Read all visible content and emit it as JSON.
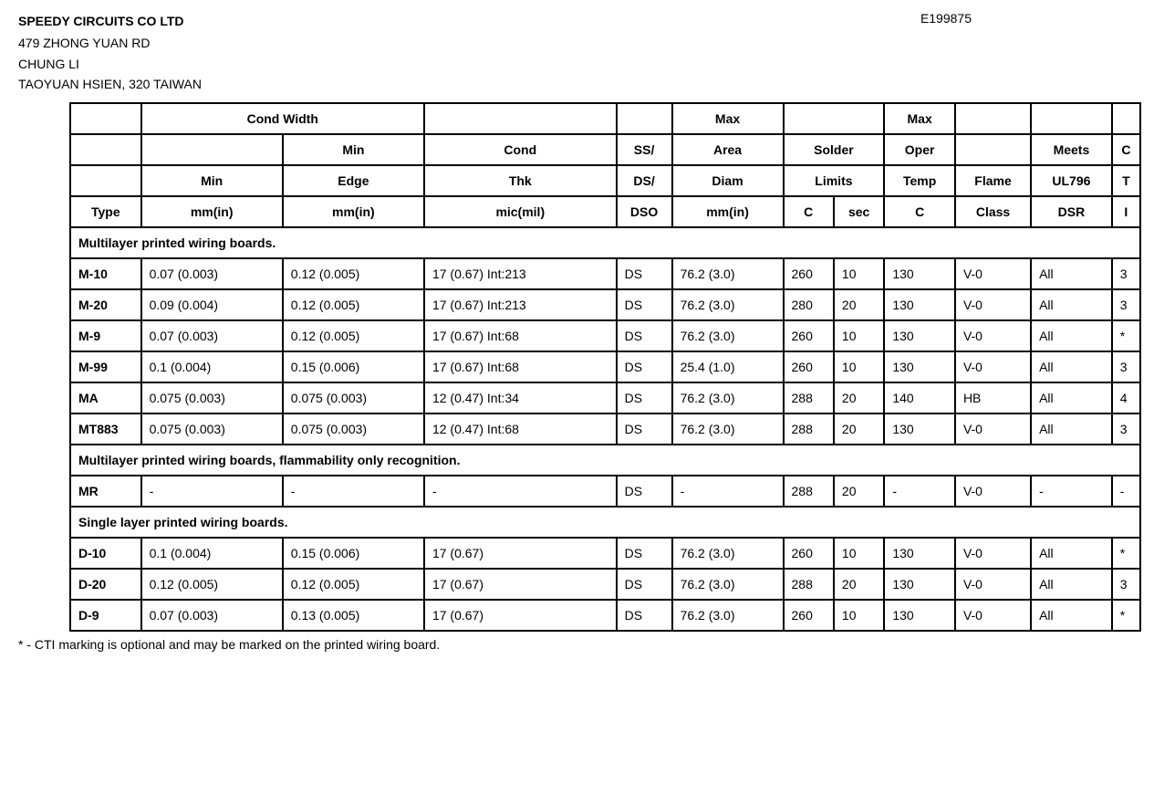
{
  "company": {
    "name": "SPEEDY CIRCUITS CO LTD",
    "address1": "479 ZHONG YUAN RD",
    "address2": "CHUNG LI",
    "address3": "TAOYUAN HSIEN, 320 TAIWAN"
  },
  "doc_number": "E199875",
  "header": {
    "r1_cond_width": "Cond Width",
    "r1_max_area": "Max",
    "r1_max_oper": "Max",
    "r2_min": "Min",
    "r2_cond": "Cond",
    "r2_ss": "SS/",
    "r2_area": "Area",
    "r2_solder": "Solder",
    "r2_oper": "Oper",
    "r2_meets": "Meets",
    "r2_c": "C",
    "r3_min": "Min",
    "r3_edge": "Edge",
    "r3_thk": "Thk",
    "r3_ds": "DS/",
    "r3_diam": "Diam",
    "r3_limits": "Limits",
    "r3_temp": "Temp",
    "r3_flame": "Flame",
    "r3_ul796": "UL796",
    "r3_t": "T",
    "r4_type": "Type",
    "r4_mmin1": "mm(in)",
    "r4_mmin2": "mm(in)",
    "r4_micmil": "mic(mil)",
    "r4_dso": "DSO",
    "r4_mmin3": "mm(in)",
    "r4_c": "C",
    "r4_sec": "sec",
    "r4_c2": "C",
    "r4_class": "Class",
    "r4_dsr": "DSR",
    "r4_i": "I"
  },
  "sections": {
    "multilayer": "Multilayer printed wiring boards.",
    "multilayer_flam": "Multilayer printed wiring boards, flammability only recognition.",
    "single_layer": "Single layer printed wiring boards."
  },
  "rows": {
    "m10": {
      "type": "M-10",
      "min": "0.07 (0.003)",
      "edge": "0.12 (0.005)",
      "cond": "17 (0.67) Int:213",
      "ss": "DS",
      "area": "76.2 (3.0)",
      "c": "260",
      "sec": "10",
      "temp": "130",
      "flame": "V-0",
      "meets": "All",
      "cti": "3"
    },
    "m20": {
      "type": "M-20",
      "min": "0.09 (0.004)",
      "edge": "0.12 (0.005)",
      "cond": "17 (0.67) Int:213",
      "ss": "DS",
      "area": "76.2 (3.0)",
      "c": "280",
      "sec": "20",
      "temp": "130",
      "flame": "V-0",
      "meets": "All",
      "cti": "3"
    },
    "m9": {
      "type": "M-9",
      "min": "0.07 (0.003)",
      "edge": "0.12 (0.005)",
      "cond": "17 (0.67) Int:68",
      "ss": "DS",
      "area": "76.2 (3.0)",
      "c": "260",
      "sec": "10",
      "temp": "130",
      "flame": "V-0",
      "meets": "All",
      "cti": "*"
    },
    "m99": {
      "type": "M-99",
      "min": "0.1 (0.004)",
      "edge": "0.15 (0.006)",
      "cond": "17 (0.67) Int:68",
      "ss": "DS",
      "area": "25.4 (1.0)",
      "c": "260",
      "sec": "10",
      "temp": "130",
      "flame": "V-0",
      "meets": "All",
      "cti": "3"
    },
    "ma": {
      "type": "MA",
      "min": "0.075 (0.003)",
      "edge": "0.075 (0.003)",
      "cond": "12 (0.47) Int:34",
      "ss": "DS",
      "area": "76.2 (3.0)",
      "c": "288",
      "sec": "20",
      "temp": "140",
      "flame": "HB",
      "meets": "All",
      "cti": "4"
    },
    "mt883": {
      "type": "MT883",
      "min": "0.075 (0.003)",
      "edge": "0.075 (0.003)",
      "cond": "12 (0.47) Int:68",
      "ss": "DS",
      "area": "76.2 (3.0)",
      "c": "288",
      "sec": "20",
      "temp": "130",
      "flame": "V-0",
      "meets": "All",
      "cti": "3"
    },
    "mr": {
      "type": "MR",
      "min": "-",
      "edge": "-",
      "cond": "-",
      "ss": "DS",
      "area": "-",
      "c": "288",
      "sec": "20",
      "temp": "-",
      "flame": "V-0",
      "meets": "-",
      "cti": "-"
    },
    "d10": {
      "type": "D-10",
      "min": "0.1 (0.004)",
      "edge": "0.15 (0.006)",
      "cond": "17 (0.67)",
      "ss": "DS",
      "area": "76.2 (3.0)",
      "c": "260",
      "sec": "10",
      "temp": "130",
      "flame": "V-0",
      "meets": "All",
      "cti": "*"
    },
    "d20": {
      "type": "D-20",
      "min": "0.12 (0.005)",
      "edge": "0.12 (0.005)",
      "cond": "17 (0.67)",
      "ss": "DS",
      "area": "76.2 (3.0)",
      "c": "288",
      "sec": "20",
      "temp": "130",
      "flame": "V-0",
      "meets": "All",
      "cti": "3"
    },
    "d9": {
      "type": "D-9",
      "min": "0.07 (0.003)",
      "edge": "0.13 (0.005)",
      "cond": "17 (0.67)",
      "ss": "DS",
      "area": "76.2 (3.0)",
      "c": "260",
      "sec": "10",
      "temp": "130",
      "flame": "V-0",
      "meets": "All",
      "cti": "*"
    }
  },
  "footnote": "* - CTI marking is optional and may be marked on the printed wiring board."
}
